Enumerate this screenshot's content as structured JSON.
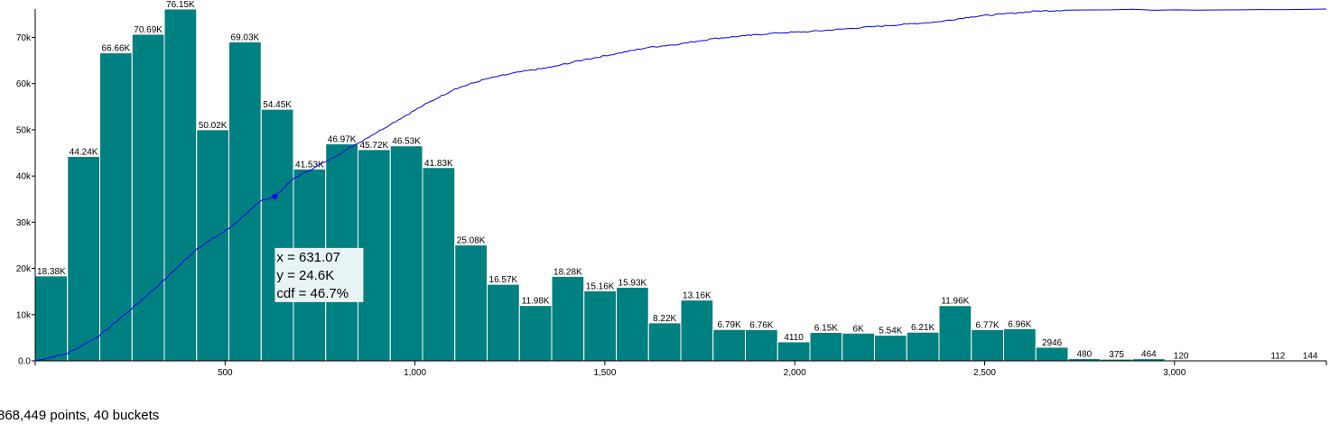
{
  "chart_data": {
    "type": "bar",
    "xlim": [
      0,
      3400
    ],
    "ylim": [
      0,
      76150
    ],
    "y_ticks": [
      0,
      10000,
      20000,
      30000,
      40000,
      50000,
      60000,
      70000
    ],
    "y_tick_labels": [
      "0.0",
      "10k",
      "20k",
      "30k",
      "40k",
      "50k",
      "60k",
      "70k"
    ],
    "x_ticks": [
      500,
      1000,
      1500,
      2000,
      2500,
      3000
    ],
    "x_tick_labels": [
      "500",
      "1,000",
      "1,500",
      "2,000",
      "2,500",
      "3,000"
    ],
    "bins": [
      {
        "x0": 0,
        "x1": 85,
        "value": 18380,
        "label": "18.38K"
      },
      {
        "x0": 85,
        "x1": 170,
        "value": 44240,
        "label": "44.24K"
      },
      {
        "x0": 170,
        "x1": 255,
        "value": 66660,
        "label": "66.66K"
      },
      {
        "x0": 255,
        "x1": 340,
        "value": 70690,
        "label": "70.69K"
      },
      {
        "x0": 340,
        "x1": 425,
        "value": 76150,
        "label": "76.15K"
      },
      {
        "x0": 425,
        "x1": 510,
        "value": 50020,
        "label": "50.02K"
      },
      {
        "x0": 510,
        "x1": 595,
        "value": 69030,
        "label": "69.03K"
      },
      {
        "x0": 595,
        "x1": 680,
        "value": 54450,
        "label": "54.45K"
      },
      {
        "x0": 680,
        "x1": 765,
        "value": 41530,
        "label": "41.53K"
      },
      {
        "x0": 765,
        "x1": 850,
        "value": 46970,
        "label": "46.97K"
      },
      {
        "x0": 850,
        "x1": 935,
        "value": 45720,
        "label": "45.72K"
      },
      {
        "x0": 935,
        "x1": 1020,
        "value": 46530,
        "label": "46.53K"
      },
      {
        "x0": 1020,
        "x1": 1105,
        "value": 41830,
        "label": "41.83K"
      },
      {
        "x0": 1105,
        "x1": 1190,
        "value": 25080,
        "label": "25.08K"
      },
      {
        "x0": 1190,
        "x1": 1275,
        "value": 16570,
        "label": "16.57K"
      },
      {
        "x0": 1275,
        "x1": 1360,
        "value": 11980,
        "label": "11.98K"
      },
      {
        "x0": 1360,
        "x1": 1445,
        "value": 18280,
        "label": "18.28K"
      },
      {
        "x0": 1445,
        "x1": 1530,
        "value": 15160,
        "label": "15.16K"
      },
      {
        "x0": 1530,
        "x1": 1615,
        "value": 15930,
        "label": "15.93K"
      },
      {
        "x0": 1615,
        "x1": 1700,
        "value": 8220,
        "label": "8.22K"
      },
      {
        "x0": 1700,
        "x1": 1785,
        "value": 13160,
        "label": "13.16K"
      },
      {
        "x0": 1785,
        "x1": 1870,
        "value": 6790,
        "label": "6.79K"
      },
      {
        "x0": 1870,
        "x1": 1955,
        "value": 6760,
        "label": "6.76K"
      },
      {
        "x0": 1955,
        "x1": 2040,
        "value": 4110,
        "label": "4110"
      },
      {
        "x0": 2040,
        "x1": 2125,
        "value": 6150,
        "label": "6.15K"
      },
      {
        "x0": 2125,
        "x1": 2210,
        "value": 6000,
        "label": "6K"
      },
      {
        "x0": 2210,
        "x1": 2295,
        "value": 5540,
        "label": "5.54K"
      },
      {
        "x0": 2295,
        "x1": 2380,
        "value": 6210,
        "label": "6.21K"
      },
      {
        "x0": 2380,
        "x1": 2465,
        "value": 11960,
        "label": "11.96K"
      },
      {
        "x0": 2465,
        "x1": 2550,
        "value": 6770,
        "label": "6.77K"
      },
      {
        "x0": 2550,
        "x1": 2635,
        "value": 6960,
        "label": "6.96K"
      },
      {
        "x0": 2635,
        "x1": 2720,
        "value": 2946,
        "label": "2946"
      },
      {
        "x0": 2720,
        "x1": 2805,
        "value": 480,
        "label": "480"
      },
      {
        "x0": 2805,
        "x1": 2890,
        "value": 375,
        "label": "375"
      },
      {
        "x0": 2890,
        "x1": 2975,
        "value": 464,
        "label": "464"
      },
      {
        "x0": 2975,
        "x1": 3060,
        "value": 120,
        "label": "120"
      },
      {
        "x0": 3060,
        "x1": 3145,
        "value": 0,
        "label": ""
      },
      {
        "x0": 3145,
        "x1": 3230,
        "value": 0,
        "label": ""
      },
      {
        "x0": 3230,
        "x1": 3315,
        "value": 112,
        "label": "112"
      },
      {
        "x0": 3315,
        "x1": 3400,
        "value": 144,
        "label": "144"
      }
    ],
    "cdf_curve": {
      "x": [
        0,
        85,
        170,
        255,
        340,
        425,
        510,
        595,
        631.07,
        680,
        765,
        850,
        935,
        1020,
        1105,
        1190,
        1275,
        1360,
        1445,
        1530,
        1615,
        1700,
        1785,
        1870,
        1955,
        2040,
        2125,
        2210,
        2295,
        2380,
        2465,
        2550,
        2635,
        2720,
        3400
      ],
      "cdf": [
        0.0,
        0.021,
        0.072,
        0.149,
        0.23,
        0.318,
        0.376,
        0.455,
        0.467,
        0.518,
        0.566,
        0.619,
        0.672,
        0.725,
        0.773,
        0.802,
        0.821,
        0.835,
        0.856,
        0.873,
        0.891,
        0.901,
        0.916,
        0.924,
        0.932,
        0.936,
        0.943,
        0.95,
        0.957,
        0.964,
        0.978,
        0.986,
        0.994,
        0.997,
        1.0
      ]
    },
    "tooltip": {
      "x": 631.07,
      "cdf": 0.467,
      "lines": [
        "x = 631.07",
        "y = 24.6K",
        "cdf = 46.7%"
      ]
    },
    "colors": {
      "bar": "#008080",
      "bar_stroke": "#ffffff",
      "cdf_line": "#0000ee",
      "tooltip_bg": "#e8f4f4",
      "axis": "#000000"
    }
  },
  "footer": {
    "points": "868,449 points",
    "buckets": "40 buckets"
  }
}
